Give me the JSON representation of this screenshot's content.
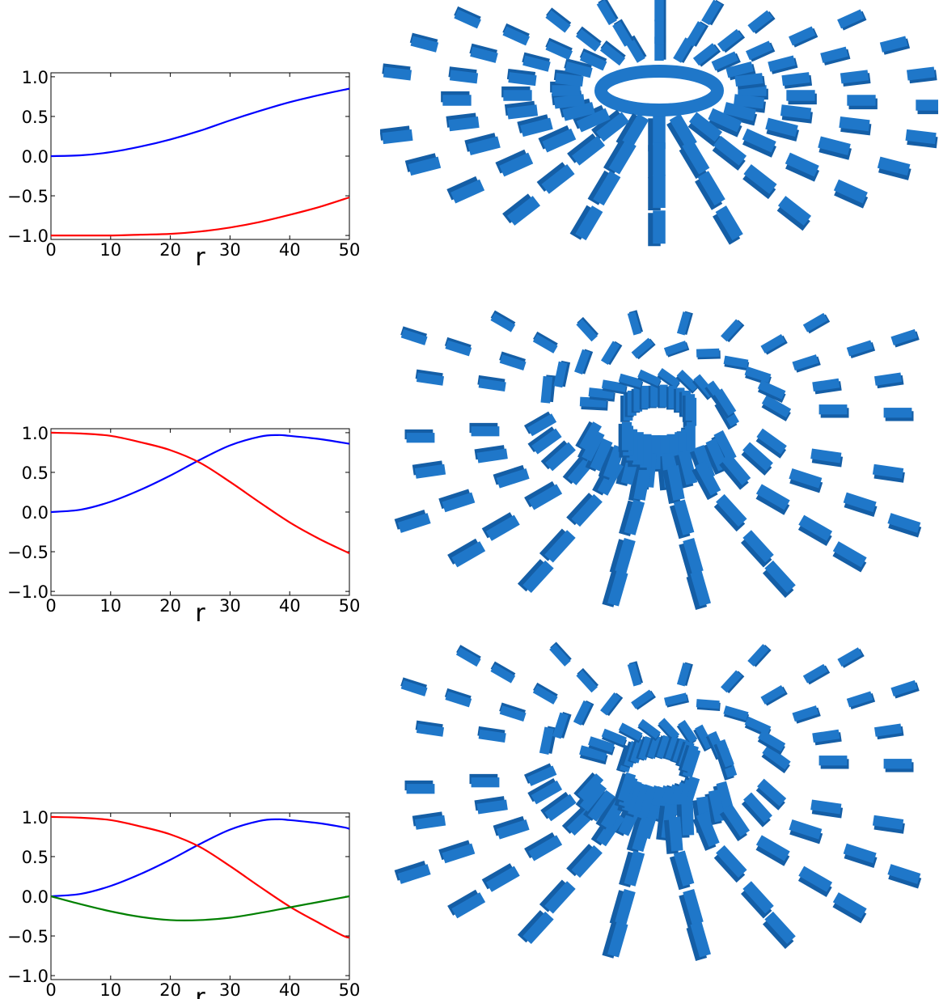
{
  "colors": {
    "accent": "#1f77c9",
    "red": "#ff0000",
    "blue": "#0000ff",
    "green": "#008000"
  },
  "chart_data": [
    {
      "type": "line",
      "xlabel": "r",
      "ylabel": "",
      "xlim": [
        0,
        50
      ],
      "ylim": [
        -1.05,
        1.05
      ],
      "xticks": [
        "0",
        "10",
        "20",
        "30",
        "40",
        "50"
      ],
      "yticks": [
        "1.0",
        "0.5",
        "0.0",
        "−0.5",
        "−1.0"
      ],
      "series": [
        {
          "color": "#0000ff",
          "x": [
            0,
            5,
            10,
            15,
            20,
            25,
            30,
            35,
            40,
            45,
            50
          ],
          "y": [
            0.0,
            0.01,
            0.05,
            0.12,
            0.21,
            0.32,
            0.45,
            0.57,
            0.68,
            0.77,
            0.85
          ]
        },
        {
          "color": "#ff0000",
          "x": [
            0,
            5,
            10,
            15,
            20,
            25,
            30,
            35,
            40,
            45,
            50
          ],
          "y": [
            -1.0,
            -1.0,
            -1.0,
            -0.99,
            -0.98,
            -0.95,
            -0.9,
            -0.83,
            -0.74,
            -0.64,
            -0.52
          ]
        }
      ]
    },
    {
      "type": "line",
      "xlabel": "r",
      "ylabel": "",
      "xlim": [
        0,
        50
      ],
      "ylim": [
        -1.05,
        1.05
      ],
      "xticks": [
        "0",
        "10",
        "20",
        "30",
        "40",
        "50"
      ],
      "yticks": [
        "1.0",
        "0.5",
        "0.0",
        "−0.5",
        "−1.0"
      ],
      "series": [
        {
          "color": "#0000ff",
          "x": [
            0,
            5,
            10,
            15,
            20,
            25,
            30,
            35,
            38,
            40,
            45,
            50
          ],
          "y": [
            0.0,
            0.03,
            0.13,
            0.28,
            0.46,
            0.66,
            0.84,
            0.95,
            0.97,
            0.96,
            0.92,
            0.86
          ]
        },
        {
          "color": "#ff0000",
          "x": [
            0,
            5,
            10,
            15,
            20,
            25,
            30,
            35,
            40,
            45,
            50
          ],
          "y": [
            1.0,
            0.99,
            0.96,
            0.88,
            0.78,
            0.62,
            0.38,
            0.12,
            -0.13,
            -0.34,
            -0.52
          ]
        }
      ]
    },
    {
      "type": "line",
      "xlabel": "r",
      "ylabel": "",
      "xlim": [
        0,
        50
      ],
      "ylim": [
        -1.05,
        1.05
      ],
      "xticks": [
        "0",
        "10",
        "20",
        "30",
        "40",
        "50"
      ],
      "yticks": [
        "1.0",
        "0.5",
        "0.0",
        "−0.5",
        "−1.0"
      ],
      "series": [
        {
          "color": "#0000ff",
          "x": [
            0,
            5,
            10,
            15,
            20,
            25,
            30,
            35,
            38,
            40,
            45,
            49,
            50
          ],
          "y": [
            0.0,
            0.03,
            0.13,
            0.28,
            0.46,
            0.66,
            0.84,
            0.95,
            0.97,
            0.96,
            0.92,
            0.87,
            0.85
          ]
        },
        {
          "color": "#ff0000",
          "x": [
            0,
            5,
            10,
            15,
            20,
            25,
            30,
            35,
            40,
            45,
            49,
            50
          ],
          "y": [
            1.0,
            0.99,
            0.96,
            0.88,
            0.78,
            0.62,
            0.38,
            0.12,
            -0.13,
            -0.34,
            -0.5,
            -0.52
          ]
        },
        {
          "color": "#008000",
          "x": [
            0,
            5,
            10,
            15,
            20,
            25,
            30,
            35,
            40,
            45,
            50
          ],
          "y": [
            0.0,
            -0.1,
            -0.19,
            -0.26,
            -0.3,
            -0.3,
            -0.27,
            -0.21,
            -0.14,
            -0.07,
            0.0
          ]
        }
      ]
    }
  ]
}
